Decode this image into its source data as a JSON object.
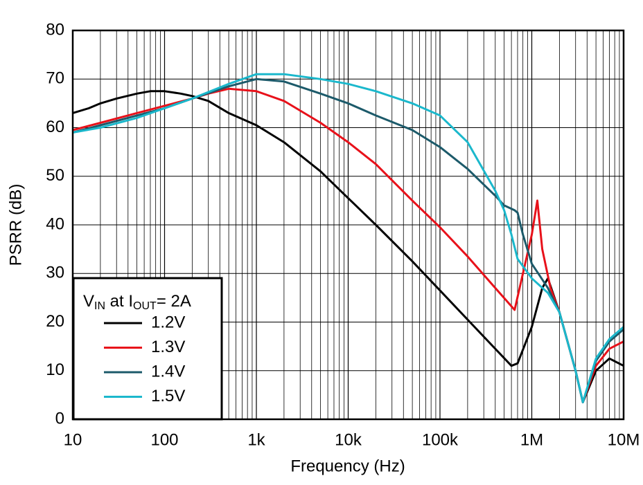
{
  "chart_data": {
    "type": "line",
    "x_label": "Frequency (Hz)",
    "y_label": "PSRR (dB)",
    "xscale": "log",
    "grid": true,
    "legend_loc": "lower left",
    "legend_title": [
      "V",
      "IN",
      " at I",
      "OUT",
      "= 2A"
    ],
    "xlim": [
      10,
      10000000
    ],
    "ylim": [
      0,
      80
    ],
    "yticks": [
      0,
      10,
      20,
      30,
      40,
      50,
      60,
      70,
      80
    ],
    "xticks": [
      10,
      100,
      {
        "value": 1000,
        "label": "1k"
      },
      {
        "value": 10000,
        "label": "10k"
      },
      {
        "value": 100000,
        "label": "100k"
      },
      {
        "value": 1000000,
        "label": "1M"
      },
      {
        "value": 10000000,
        "label": "10M"
      }
    ],
    "xminorticks": [
      20,
      30,
      40,
      50,
      60,
      70,
      80,
      90,
      200,
      300,
      400,
      500,
      600,
      700,
      800,
      900,
      2000,
      3000,
      4000,
      5000,
      6000,
      7000,
      8000,
      9000,
      20000,
      30000,
      40000,
      50000,
      60000,
      70000,
      80000,
      90000,
      200000,
      300000,
      400000,
      500000,
      600000,
      700000,
      800000,
      900000,
      2000000,
      3000000,
      4000000,
      5000000,
      6000000,
      7000000,
      8000000,
      9000000
    ],
    "series": [
      {
        "name": "1.2V",
        "color": "#000000",
        "x": [
          10,
          15,
          20,
          30,
          50,
          70,
          100,
          150,
          200,
          300,
          500,
          1000,
          2000,
          5000,
          10000,
          20000,
          50000,
          100000,
          200000,
          400000,
          600000,
          700000,
          1000000,
          1300000,
          1500000,
          2000000,
          3000000,
          3600000,
          5000000,
          7000000,
          10000000
        ],
        "values": [
          63,
          64,
          65,
          66,
          67,
          67.5,
          67.5,
          67,
          66.5,
          65.5,
          63,
          60.5,
          57,
          51,
          45.5,
          40,
          32.5,
          26.5,
          20.5,
          14.5,
          11,
          11.5,
          19,
          27,
          29,
          22,
          10,
          3.5,
          10,
          12.5,
          11
        ]
      },
      {
        "name": "1.3V",
        "color": "#e8111a",
        "x": [
          10,
          20,
          50,
          100,
          200,
          300,
          500,
          1000,
          2000,
          5000,
          10000,
          20000,
          50000,
          100000,
          200000,
          400000,
          650000,
          800000,
          1000000,
          1150000,
          1300000,
          1600000,
          2000000,
          3000000,
          3600000,
          5000000,
          7000000,
          10000000
        ],
        "values": [
          59.5,
          61,
          63,
          64.5,
          66,
          67,
          68,
          67.5,
          65.5,
          61,
          57,
          52.5,
          45,
          39.5,
          33.5,
          27,
          22.5,
          30,
          38,
          45,
          35,
          27,
          22,
          10,
          3.5,
          11,
          14.5,
          16
        ]
      },
      {
        "name": "1.4V",
        "color": "#1c5a6a",
        "x": [
          10,
          20,
          50,
          100,
          200,
          500,
          1000,
          2000,
          5000,
          10000,
          20000,
          50000,
          100000,
          200000,
          400000,
          500000,
          650000,
          700000,
          800000,
          1000000,
          1500000,
          2000000,
          3000000,
          3600000,
          5000000,
          7000000,
          10000000
        ],
        "values": [
          59,
          60.5,
          62.5,
          64,
          66,
          68.5,
          70,
          69.5,
          67,
          65,
          62.5,
          59.5,
          56,
          51.5,
          46,
          44,
          43,
          42.5,
          38,
          32,
          27,
          22,
          10,
          3.5,
          12,
          16,
          18.5
        ]
      },
      {
        "name": "1.5V",
        "color": "#1bb8cc",
        "x": [
          10,
          20,
          50,
          100,
          200,
          500,
          1000,
          2000,
          5000,
          10000,
          20000,
          50000,
          100000,
          200000,
          400000,
          500000,
          600000,
          700000,
          1000000,
          1500000,
          2000000,
          3000000,
          3600000,
          5000000,
          7000000,
          10000000
        ],
        "values": [
          59,
          60,
          62,
          64,
          66,
          69,
          71,
          71,
          70,
          69,
          67.5,
          65,
          62.5,
          57,
          47,
          43,
          38,
          33,
          29,
          26,
          22,
          10,
          3.5,
          12.5,
          16.5,
          19
        ]
      }
    ]
  }
}
